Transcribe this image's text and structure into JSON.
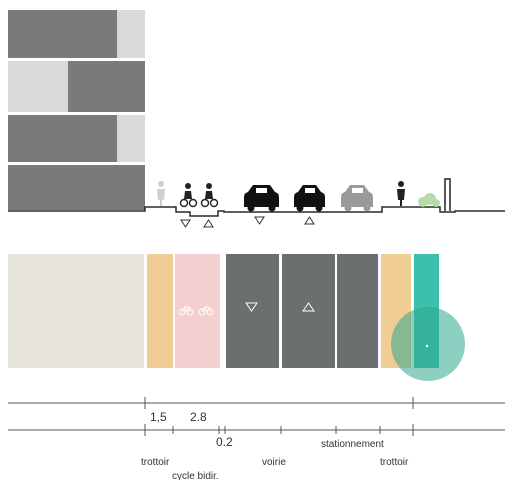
{
  "colors": {
    "building_dark": "#7a7a7a",
    "building_light": "#d9d9d9",
    "ground_line": "#2a2a2a",
    "plan_building": "#e6e2dc",
    "sidewalk": "#f0cd95",
    "cycle": "#f4cfcf",
    "road": "#6b6f70",
    "parking": "#6b6f70",
    "green_strip": "#3dbfae",
    "highlight_circle": "#2fa88e",
    "tick_line": "#555555",
    "label": "#333333"
  },
  "icons": [
    "pedestrian-icon",
    "cyclist-icon",
    "car-icon",
    "tree-icon",
    "bike-symbol-icon",
    "arrow-down-icon",
    "arrow-up-icon",
    "pole-icon"
  ],
  "dimensions": {
    "sidewalk_width": "1,5",
    "cycle_width": "2.8",
    "buffer_width": "0.2"
  },
  "labels": {
    "trottoir_left": "trottoir",
    "cycle": "cycle bidir.",
    "voirie": "voirie",
    "stationnement": "stationnement",
    "trottoir_right": "trottoir"
  }
}
